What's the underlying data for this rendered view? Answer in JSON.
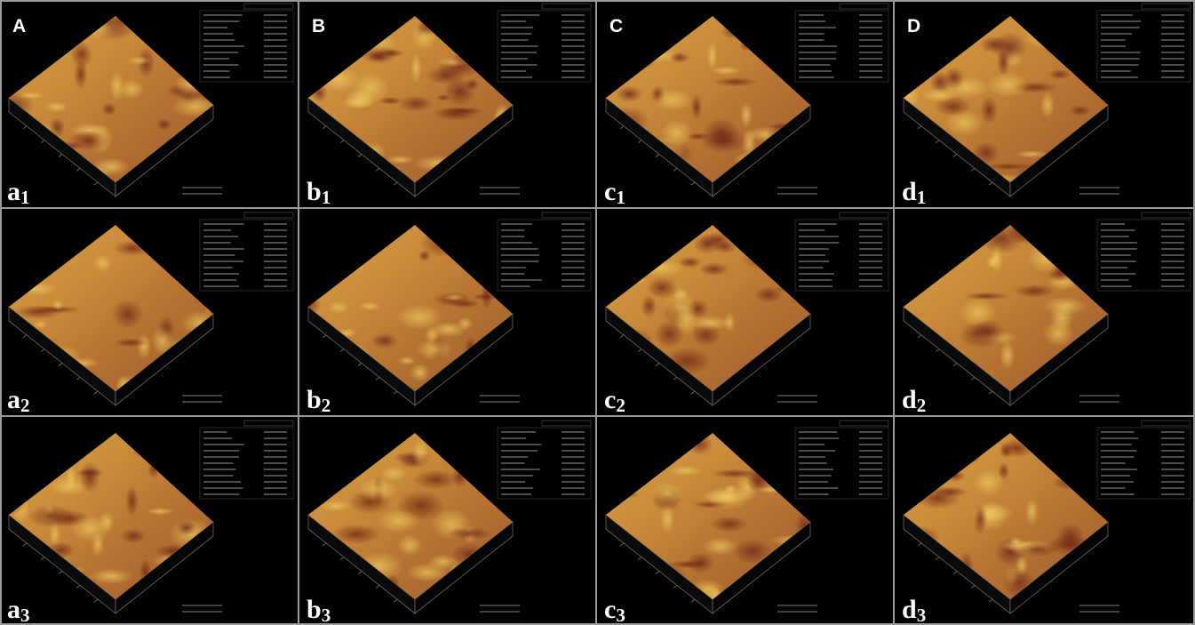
{
  "columns": [
    "A",
    "B",
    "C",
    "D"
  ],
  "panels": [
    [
      {
        "letter": "a",
        "sub": "1"
      },
      {
        "letter": "b",
        "sub": "1"
      },
      {
        "letter": "c",
        "sub": "1"
      },
      {
        "letter": "d",
        "sub": "1"
      }
    ],
    [
      {
        "letter": "a",
        "sub": "2"
      },
      {
        "letter": "b",
        "sub": "2"
      },
      {
        "letter": "c",
        "sub": "2"
      },
      {
        "letter": "d",
        "sub": "2"
      }
    ],
    [
      {
        "letter": "a",
        "sub": "3"
      },
      {
        "letter": "b",
        "sub": "3"
      },
      {
        "letter": "c",
        "sub": "3"
      },
      {
        "letter": "d",
        "sub": "3"
      }
    ]
  ]
}
